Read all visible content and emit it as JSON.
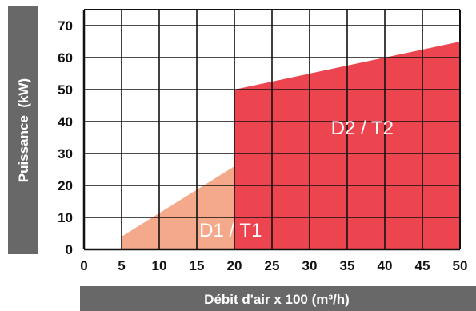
{
  "chart_data": {
    "type": "area",
    "xlabel": "Débit d'air x 100 (m³/h)",
    "ylabel": "Puissance  (kW)",
    "xlim": [
      0,
      50
    ],
    "ylim": [
      0,
      75
    ],
    "xticks": [
      "0",
      "5",
      "10",
      "15",
      "20",
      "25",
      "30",
      "35",
      "40",
      "45",
      "50"
    ],
    "yticks": [
      "0",
      "10",
      "20",
      "30",
      "40",
      "50",
      "60",
      "70"
    ],
    "grid": true,
    "series": [
      {
        "name": "D1 / T1",
        "color": "#f5a98b",
        "polygon": [
          [
            5,
            0
          ],
          [
            5,
            4
          ],
          [
            20,
            26
          ],
          [
            25,
            33
          ],
          [
            25,
            0
          ]
        ]
      },
      {
        "name": "D2 / T2",
        "color": "#ec4550",
        "polygon": [
          [
            20,
            0
          ],
          [
            20,
            50
          ],
          [
            50,
            65
          ],
          [
            50,
            0
          ]
        ]
      }
    ],
    "region_labels": [
      {
        "text": "D2 / T2",
        "x": 37,
        "y": 36
      },
      {
        "text": "D1 / T1",
        "x": 19.5,
        "y": 4
      }
    ],
    "colors": {
      "grid": "#111111",
      "axis_bar": "#686868"
    }
  }
}
